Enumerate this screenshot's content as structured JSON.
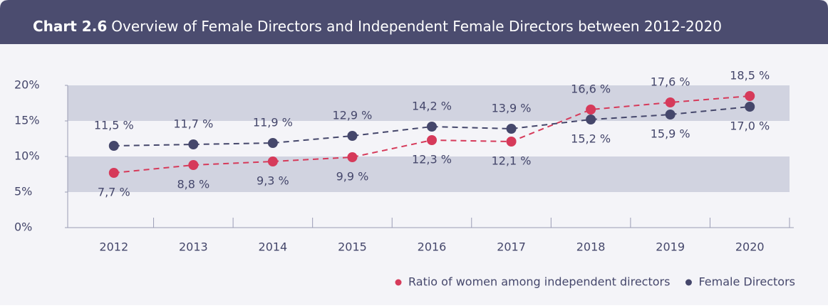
{
  "chart_data": {
    "type": "line",
    "label": "Chart 2.6",
    "title": "Overview of Female Directors and Independent Female Directors between 2012-2020",
    "categories": [
      "2012",
      "2013",
      "2014",
      "2015",
      "2016",
      "2017",
      "2018",
      "2019",
      "2020"
    ],
    "series": [
      {
        "name": "Ratio of women among independent directors",
        "color": "#d63a5a",
        "values": [
          7.7,
          8.8,
          9.3,
          9.9,
          12.3,
          12.1,
          16.6,
          17.6,
          18.5
        ],
        "value_labels": [
          "7,7 %",
          "8,8 %",
          "9,3 %",
          "9,9 %",
          "12,3 %",
          "12,1 %",
          "16,6 %",
          "17,6 %",
          "18,5 %"
        ]
      },
      {
        "name": "Female Directors",
        "color": "#45476b",
        "values": [
          11.5,
          11.7,
          11.9,
          12.9,
          14.2,
          13.9,
          15.2,
          15.9,
          17.0
        ],
        "value_labels": [
          "11,5 %",
          "11,7 %",
          "11,9 %",
          "12,9 %",
          "14,2 %",
          "13,9 %",
          "15,2 %",
          "15,9 %",
          "17,0 %"
        ]
      }
    ],
    "ylim": [
      0,
      20
    ],
    "yticks": [
      {
        "value": 0,
        "label": "0%"
      },
      {
        "value": 5,
        "label": "5%"
      },
      {
        "value": 10,
        "label": "10%"
      },
      {
        "value": 15,
        "label": "15%"
      },
      {
        "value": 20,
        "label": "20%"
      }
    ],
    "legend": "bottom-right"
  }
}
